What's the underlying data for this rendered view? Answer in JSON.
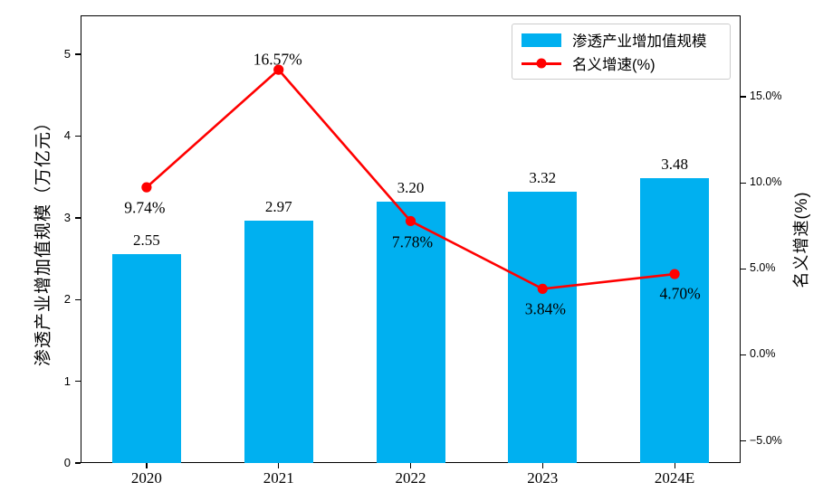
{
  "chart_data": {
    "type": "combo-bar-line",
    "title": "",
    "xlabel": "",
    "grid": false,
    "categories": [
      "2020",
      "2021",
      "2022",
      "2023",
      "2024E"
    ],
    "series": [
      {
        "name": "渗透产业增加值规模",
        "type": "bar",
        "axis": "left",
        "color": "#00B0F0",
        "values": [
          2.55,
          2.97,
          3.2,
          3.32,
          3.48
        ],
        "value_labels": [
          "2.55",
          "2.97",
          "3.20",
          "3.32",
          "3.48"
        ]
      },
      {
        "name": "名义增速(%)",
        "type": "line",
        "axis": "right",
        "color": "#FF0000",
        "values": [
          9.74,
          16.57,
          7.78,
          3.84,
          4.7
        ],
        "value_labels": [
          "9.74%",
          "16.57%",
          "7.78%",
          "3.84%",
          "4.70%"
        ],
        "label_offsets": [
          [
            -2,
            15
          ],
          [
            -1,
            -19
          ],
          [
            2,
            16
          ],
          [
            3,
            15
          ],
          [
            6,
            14
          ]
        ]
      }
    ],
    "left_axis": {
      "label": "渗透产业增加值规模（万亿元）",
      "min": 0,
      "max": 5.476,
      "ticks": [
        {
          "v": 0,
          "label": "0"
        },
        {
          "v": 1,
          "label": "1"
        },
        {
          "v": 2,
          "label": "2"
        },
        {
          "v": 3,
          "label": "3"
        },
        {
          "v": 4,
          "label": "4"
        },
        {
          "v": 5,
          "label": "5"
        }
      ]
    },
    "right_axis": {
      "label": "名义增速(%)",
      "min": -6.28,
      "max": 19.73,
      "ticks": [
        {
          "v": -5,
          "label": "−5.0%"
        },
        {
          "v": 0,
          "label": "0.0%"
        },
        {
          "v": 5,
          "label": "5.0%"
        },
        {
          "v": 10,
          "label": "10.0%"
        },
        {
          "v": 15,
          "label": "15.0%"
        }
      ]
    },
    "legend": {
      "position": "upper right"
    }
  }
}
